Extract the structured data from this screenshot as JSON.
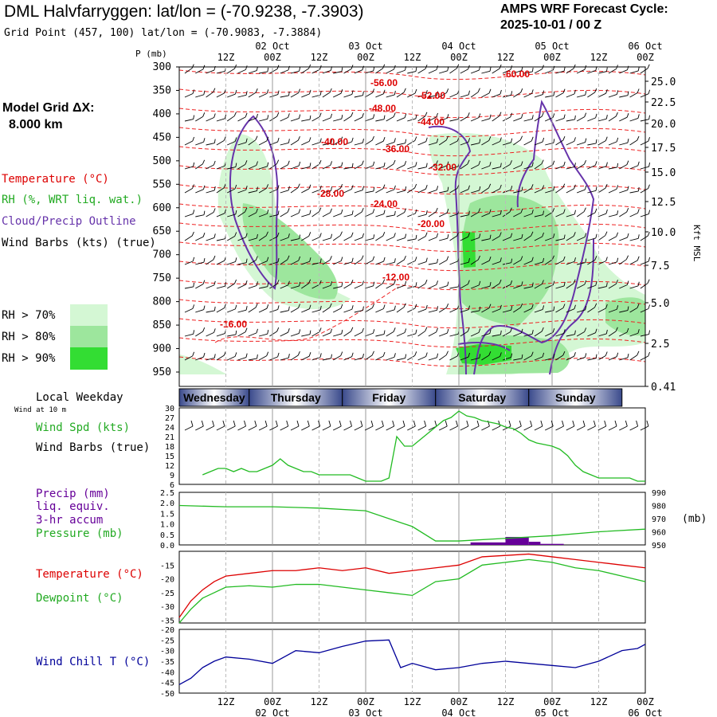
{
  "header": {
    "title": "DML Halvfarryggen:  lat/lon = (-70.9238, -7.3903)",
    "subtitle": "Grid Point (457, 100) lat/lon = (-70.9083, -7.3884)",
    "cycle_line1": "AMPS WRF Forecast Cycle:",
    "cycle_line2": "2025-10-01 / 00  Z"
  },
  "sidebar": {
    "model_grid": "Model Grid ΔX:",
    "grid_km": "8.000 km",
    "legend_temperature": "Temperature (°C)",
    "legend_rh": "RH (%, WRT liq. wat.)",
    "legend_cloud": "Cloud/Precip Outline",
    "legend_wind": "Wind Barbs (kts) (true)",
    "rh_bins": [
      {
        "label": "RH > 70%",
        "color": "#d4f7d4"
      },
      {
        "label": "RH > 80%",
        "color": "#9de69d"
      },
      {
        "label": "RH > 90%",
        "color": "#33dd33"
      }
    ]
  },
  "colors": {
    "temperature": "#dd0000",
    "rh": "#22bb22",
    "cloud": "#6633aa",
    "wind_chill": "#000099",
    "precip": "#660099"
  },
  "chart_data": [
    {
      "type": "heatmap",
      "name": "cross-section",
      "ylabel": "P (mb)",
      "y_ticks": [
        300,
        350,
        400,
        450,
        500,
        550,
        600,
        650,
        700,
        750,
        800,
        850,
        900,
        950
      ],
      "right_label": "Kft MSL",
      "right_ticks": [
        "25.0",
        "22.5",
        "20.0",
        "17.5",
        "15.0",
        "12.5",
        "10.0",
        "7.5",
        "5.0",
        "2.5",
        "0.41"
      ],
      "x_top_hours": [
        "12Z",
        "00Z",
        "12Z",
        "00Z",
        "12Z",
        "00Z",
        "12Z",
        "00Z",
        "12Z",
        "00Z"
      ],
      "x_top_dates": [
        "02 Oct",
        "03 Oct",
        "04 Oct",
        "05 Oct",
        "06 Oct"
      ],
      "temperature_labels": [
        "-60.00",
        "-56.00",
        "-52.00",
        "-48.00",
        "-44.00",
        "-40.00",
        "-36.00",
        "-32.00",
        "-28.00",
        "-24.00",
        "-20.00",
        "-16.00",
        "-12.00"
      ]
    },
    {
      "type": "line",
      "name": "wind-speed",
      "ylabel": "Wind Spd (kts)",
      "ylabel2": "Wind Barbs (true)",
      "title": "Local Weekday",
      "note": "Wind at 10 m",
      "weekdays": [
        "Wednesday",
        "Thursday",
        "Friday",
        "Saturday",
        "Sunday"
      ],
      "y_ticks": [
        30,
        27,
        24,
        21,
        18,
        15,
        12,
        9,
        6
      ],
      "ylim": [
        6,
        30
      ],
      "x": [
        6,
        8,
        10,
        12,
        14,
        16,
        18,
        20,
        22,
        24,
        26,
        28,
        30,
        32,
        34,
        36,
        38,
        40,
        42,
        44,
        46,
        48,
        50,
        52,
        54,
        56,
        58,
        60,
        62,
        64,
        66,
        68,
        70,
        72,
        74,
        76,
        78,
        80,
        82,
        84,
        86,
        88,
        90,
        92,
        94,
        96,
        98,
        100,
        102,
        104,
        106,
        108,
        110,
        112,
        114,
        116,
        118,
        120
      ],
      "values": [
        9,
        10,
        11,
        11,
        10,
        11,
        10,
        10,
        11,
        12,
        14,
        12,
        11,
        10,
        10,
        9,
        9,
        9,
        9,
        9,
        8,
        7,
        7,
        7,
        8,
        21,
        18,
        18,
        20,
        22,
        24,
        26,
        27,
        29,
        27.5,
        27,
        26,
        25.5,
        25,
        24,
        23.5,
        22,
        20,
        19,
        18.5,
        18,
        17,
        15,
        12,
        10,
        9,
        8,
        8,
        8,
        8,
        8,
        7,
        7
      ]
    },
    {
      "type": "line",
      "name": "pressure-precip",
      "ylabel": "Precip (mm)",
      "ylabel_lines": [
        "liq. equiv.",
        "3-hr accum"
      ],
      "ylabel2": "Pressure (mb)",
      "right_unit": "(mb)",
      "y_ticks": [
        "2.5",
        "2.0",
        "1.5",
        "1.0",
        "0.5",
        "0.0"
      ],
      "ylim": [
        0,
        2.5
      ],
      "right_ticks": [
        990,
        980,
        970,
        960,
        950
      ],
      "right_lim": [
        950,
        990
      ],
      "x": [
        0,
        12,
        24,
        36,
        48,
        60,
        66,
        72,
        84,
        96,
        108,
        120
      ],
      "values": [
        980,
        979,
        979,
        978,
        976,
        964,
        953,
        953,
        955,
        957,
        960,
        962
      ],
      "precip_bars": [
        {
          "x0": 75,
          "x1": 84,
          "value": 0.12
        },
        {
          "x0": 84,
          "x1": 90,
          "value": 0.38
        },
        {
          "x0": 90,
          "x1": 93,
          "value": 0.15
        },
        {
          "x0": 93,
          "x1": 99,
          "value": 0.05
        }
      ]
    },
    {
      "type": "line",
      "name": "temperature-dewpoint",
      "series_labels": [
        "Temperature (°C)",
        "Dewpoint (°C)"
      ],
      "y_ticks": [
        -15,
        -20,
        -25,
        -30,
        -35
      ],
      "ylim": [
        -36,
        -10
      ],
      "x": [
        0,
        3,
        6,
        9,
        12,
        18,
        24,
        30,
        36,
        42,
        48,
        54,
        60,
        66,
        72,
        78,
        84,
        90,
        96,
        102,
        108,
        114,
        120
      ],
      "series": [
        {
          "name": "Temperature",
          "values": [
            -34,
            -28,
            -24,
            -21,
            -19,
            -18,
            -17,
            -17,
            -16,
            -17,
            -16,
            -18,
            -17,
            -16,
            -15,
            -12,
            -11.5,
            -11,
            -12,
            -13,
            -14,
            -15,
            -16
          ]
        },
        {
          "name": "Dewpoint",
          "values": [
            -36,
            -31,
            -27,
            -25,
            -23,
            -22.5,
            -23,
            -22,
            -22,
            -23,
            -24,
            -25,
            -26,
            -21,
            -20,
            -15,
            -14,
            -13,
            -14,
            -16,
            -17,
            -19,
            -21
          ]
        }
      ]
    },
    {
      "type": "line",
      "name": "wind-chill",
      "series_labels": [
        "Wind Chill T (°C)"
      ],
      "y_ticks": [
        -20,
        -25,
        -30,
        -35,
        -40,
        -45,
        -50
      ],
      "ylim": [
        -50,
        -20
      ],
      "x_bottom_hours": [
        "12Z",
        "00Z",
        "12Z",
        "00Z",
        "12Z",
        "00Z",
        "12Z",
        "00Z",
        "12Z",
        "00Z"
      ],
      "x_bottom_dates": [
        "02 Oct",
        "03 Oct",
        "04 Oct",
        "05 Oct",
        "06 Oct"
      ],
      "x": [
        0,
        3,
        6,
        9,
        12,
        18,
        24,
        30,
        36,
        42,
        48,
        54,
        57,
        60,
        66,
        72,
        78,
        84,
        90,
        96,
        102,
        108,
        114,
        118,
        120
      ],
      "values": [
        -46,
        -43,
        -38,
        -35,
        -33,
        -34,
        -36,
        -30,
        -31,
        -28,
        -25.5,
        -25,
        -38,
        -36,
        -39,
        -38,
        -36,
        -35,
        -36,
        -37,
        -38,
        -35,
        -30,
        -29,
        -27
      ]
    }
  ]
}
